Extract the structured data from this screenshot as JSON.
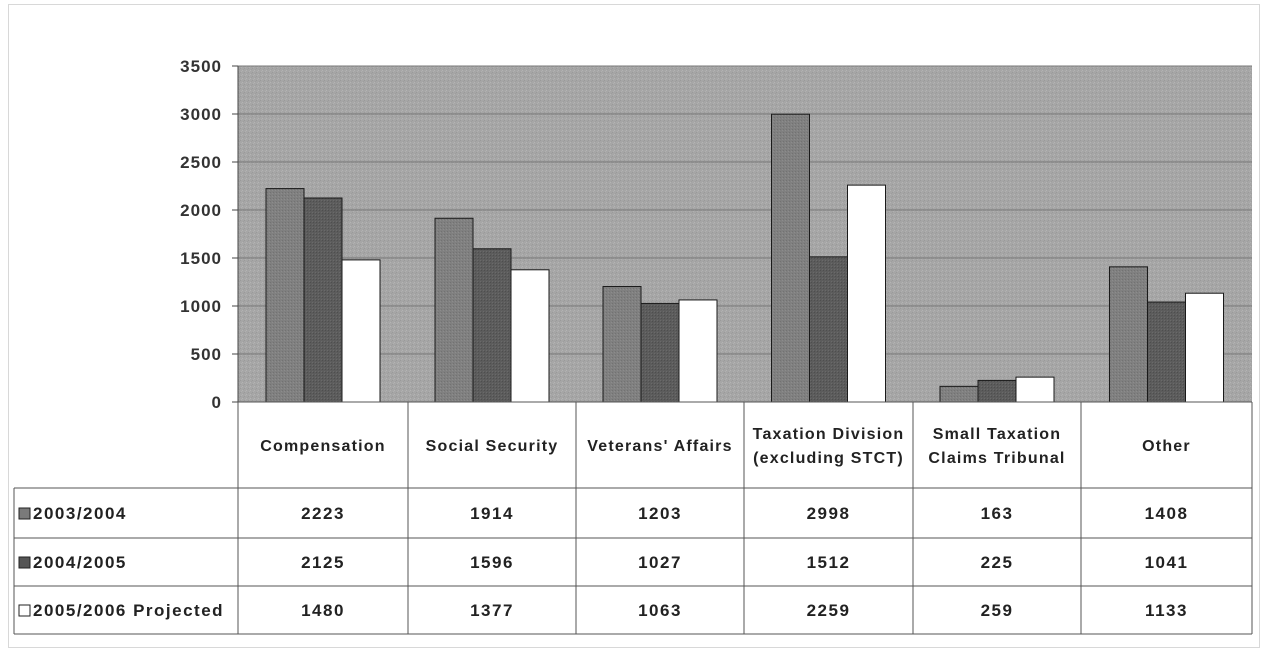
{
  "chart_data": {
    "type": "bar",
    "categories": [
      [
        "Compensation"
      ],
      [
        "Social Security"
      ],
      [
        "Veterans' Affairs"
      ],
      [
        "Taxation Division",
        "(excluding STCT)"
      ],
      [
        "Small Taxation",
        "Claims Tribunal"
      ],
      [
        "Other"
      ]
    ],
    "series": [
      {
        "name": "2003/2004",
        "values": [
          2223,
          1914,
          1203,
          2998,
          163,
          1408
        ],
        "color": "#7f7f7f"
      },
      {
        "name": "2004/2005",
        "values": [
          2125,
          1596,
          1027,
          1512,
          225,
          1041
        ],
        "color": "#5a5a5a"
      },
      {
        "name": "2005/2006 Projected",
        "values": [
          1480,
          1377,
          1063,
          2259,
          259,
          1133
        ],
        "color": "#ffffff"
      }
    ],
    "ylim": [
      0,
      3500
    ],
    "yticks": [
      "3500",
      "3000",
      "2500",
      "2000",
      "1500",
      "1000",
      "500",
      "0"
    ],
    "plot_background": "#a8a8a8",
    "grid": true,
    "data_table": true
  }
}
